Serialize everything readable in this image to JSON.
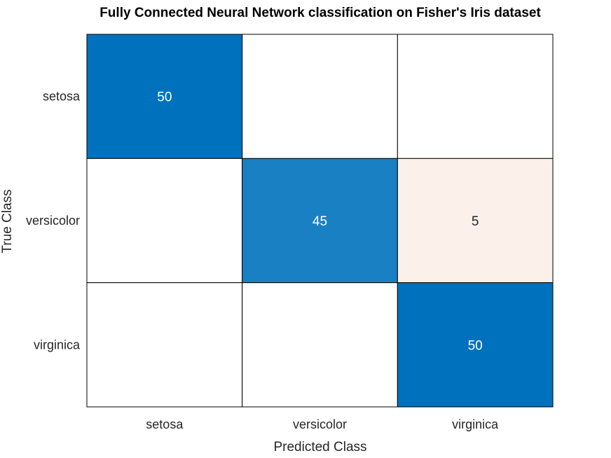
{
  "chart_data": {
    "type": "heatmap",
    "title": "Fully Connected Neural Network classification on Fisher's Iris dataset",
    "xlabel": "Predicted Class",
    "ylabel": "True Class",
    "x_categories": [
      "setosa",
      "versicolor",
      "virginica"
    ],
    "y_categories": [
      "setosa",
      "versicolor",
      "virginica"
    ],
    "values": [
      [
        50,
        0,
        0
      ],
      [
        0,
        45,
        5
      ],
      [
        0,
        0,
        50
      ]
    ],
    "show_zero_values": false,
    "colors": {
      "diagonal_max": "#0072BD",
      "diagonal_min": "#FFFFFF",
      "off_diagonal_max": "#D95319",
      "off_diagonal_min": "#FFFFFF",
      "grid_line": "#000000",
      "dark_cell_text": "#FFFFFF",
      "light_cell_text": "#262626"
    }
  }
}
